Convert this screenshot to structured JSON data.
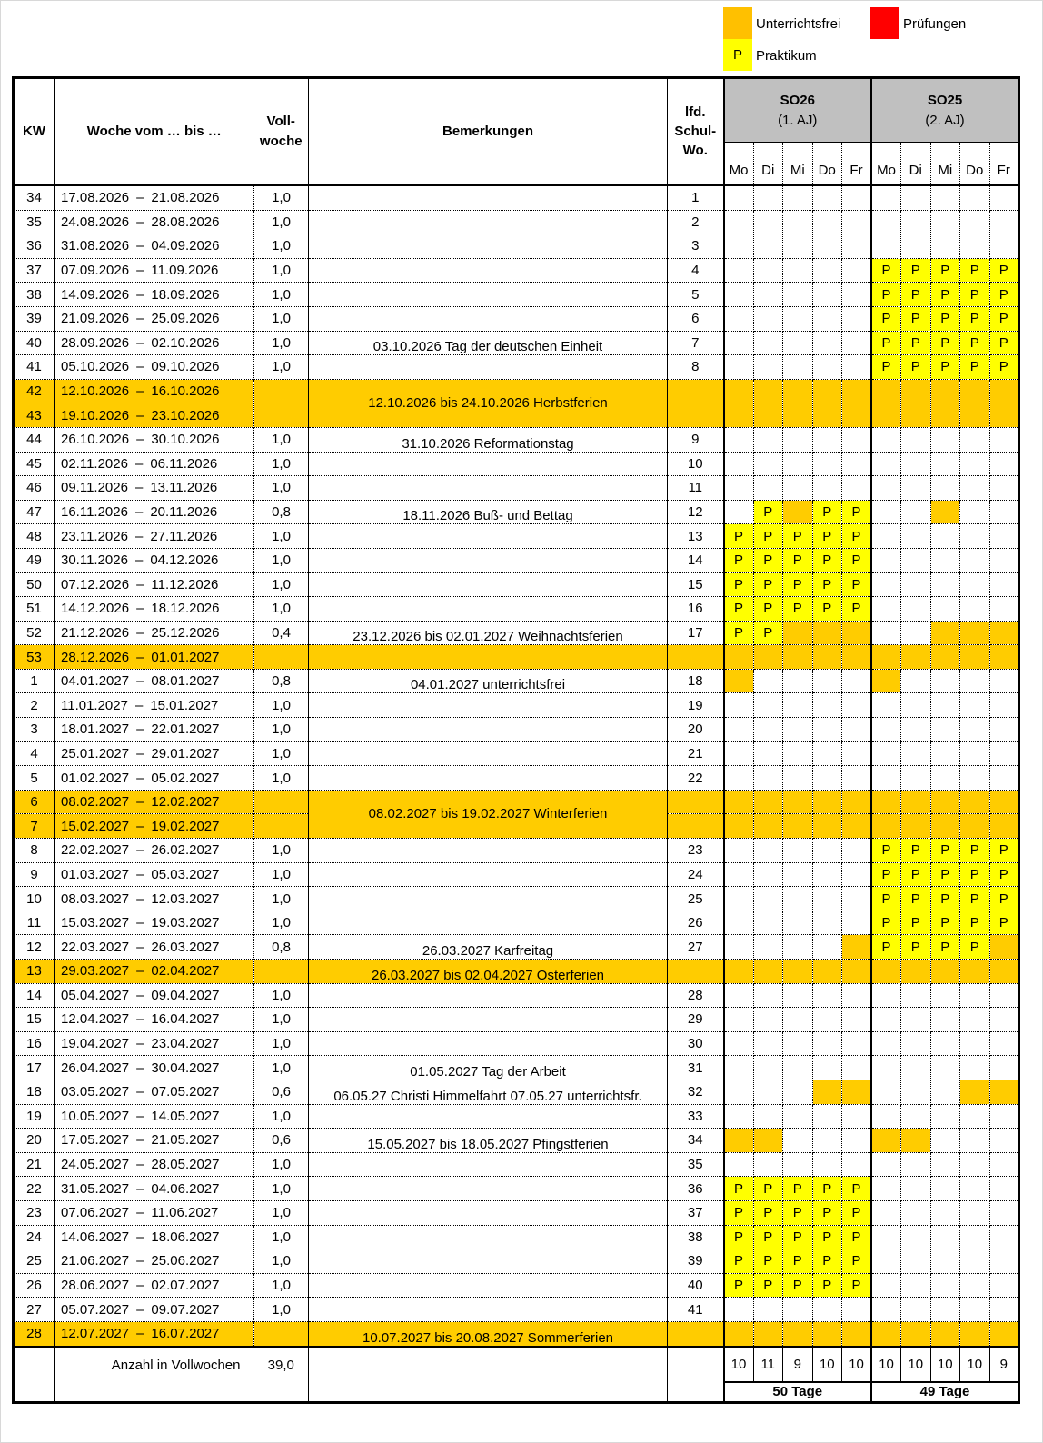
{
  "legend": {
    "unterrichtsfrei": "Unterrichtsfrei",
    "pruefungen": "Prüfungen",
    "praktikum": "Praktikum",
    "praktikum_mark": "P"
  },
  "colors": {
    "unterrichtsfrei": "#ffcc00",
    "praktikum": "#ffff00",
    "pruefungen": "#ff0000",
    "header_group": "#c0c0c0"
  },
  "header": {
    "kw": "KW",
    "woche": "Woche vom … bis …",
    "voll": "Voll-\nwoche",
    "bemerkungen": "Bemerkungen",
    "lfd": "lfd.\nSchul-\nWo.",
    "groups": [
      {
        "name": "SO26",
        "sub": "(1. AJ)"
      },
      {
        "name": "SO25",
        "sub": "(2. AJ)"
      }
    ],
    "days": [
      "Mo",
      "Di",
      "Mi",
      "Do",
      "Fr"
    ]
  },
  "rows": [
    {
      "kw": "34",
      "from": "17.08.2026",
      "to": "21.08.2026",
      "voll": "1,0",
      "note": "",
      "nr": "1",
      "so26": "-----",
      "so25": "-----"
    },
    {
      "kw": "35",
      "from": "24.08.2026",
      "to": "28.08.2026",
      "voll": "1,0",
      "note": "",
      "nr": "2",
      "so26": "-----",
      "so25": "-----"
    },
    {
      "kw": "36",
      "from": "31.08.2026",
      "to": "04.09.2026",
      "voll": "1,0",
      "note": "",
      "nr": "3",
      "so26": "-----",
      "so25": "-----"
    },
    {
      "kw": "37",
      "from": "07.09.2026",
      "to": "11.09.2026",
      "voll": "1,0",
      "note": "",
      "nr": "4",
      "so26": "-----",
      "so25": "PPPPP"
    },
    {
      "kw": "38",
      "from": "14.09.2026",
      "to": "18.09.2026",
      "voll": "1,0",
      "note": "",
      "nr": "5",
      "so26": "-----",
      "so25": "PPPPP"
    },
    {
      "kw": "39",
      "from": "21.09.2026",
      "to": "25.09.2026",
      "voll": "1,0",
      "note": "",
      "nr": "6",
      "so26": "-----",
      "so25": "PPPPP"
    },
    {
      "kw": "40",
      "from": "28.09.2026",
      "to": "02.10.2026",
      "voll": "1,0",
      "note": "03.10.2026 Tag der deutschen Einheit",
      "nr": "7",
      "so26": "-----",
      "so25": "PPPPP"
    },
    {
      "kw": "41",
      "from": "05.10.2026",
      "to": "09.10.2026",
      "voll": "1,0",
      "note": "",
      "nr": "8",
      "so26": "-----",
      "so25": "PPPPP"
    },
    {
      "kw": "42",
      "from": "12.10.2026",
      "to": "16.10.2026",
      "voll": "",
      "note": "12.10.2026 bis 24.10.2026 Herbstferien",
      "merged_with_next": true,
      "nr": "",
      "holiday": true,
      "so26": "UUUUU",
      "so25": "UUUUU"
    },
    {
      "kw": "43",
      "from": "19.10.2026",
      "to": "23.10.2026",
      "voll": "",
      "note": "",
      "nr": "",
      "holiday": true,
      "so26": "UUUUU",
      "so25": "UUUUU"
    },
    {
      "kw": "44",
      "from": "26.10.2026",
      "to": "30.10.2026",
      "voll": "1,0",
      "note": "31.10.2026 Reformationstag",
      "nr": "9",
      "so26": "-----",
      "so25": "-----"
    },
    {
      "kw": "45",
      "from": "02.11.2026",
      "to": "06.11.2026",
      "voll": "1,0",
      "note": "",
      "nr": "10",
      "so26": "-----",
      "so25": "-----"
    },
    {
      "kw": "46",
      "from": "09.11.2026",
      "to": "13.11.2026",
      "voll": "1,0",
      "note": "",
      "nr": "11",
      "so26": "-----",
      "so25": "-----"
    },
    {
      "kw": "47",
      "from": "16.11.2026",
      "to": "20.11.2026",
      "voll": "0,8",
      "note": "18.11.2026 Buß- und Bettag",
      "nr": "12",
      "so26": "-PUPP",
      "so25": "--U--"
    },
    {
      "kw": "48",
      "from": "23.11.2026",
      "to": "27.11.2026",
      "voll": "1,0",
      "note": "",
      "nr": "13",
      "so26": "PPPPP",
      "so25": "-----"
    },
    {
      "kw": "49",
      "from": "30.11.2026",
      "to": "04.12.2026",
      "voll": "1,0",
      "note": "",
      "nr": "14",
      "so26": "PPPPP",
      "so25": "-----"
    },
    {
      "kw": "50",
      "from": "07.12.2026",
      "to": "11.12.2026",
      "voll": "1,0",
      "note": "",
      "nr": "15",
      "so26": "PPPPP",
      "so25": "-----"
    },
    {
      "kw": "51",
      "from": "14.12.2026",
      "to": "18.12.2026",
      "voll": "1,0",
      "note": "",
      "nr": "16",
      "so26": "PPPPP",
      "so25": "-----"
    },
    {
      "kw": "52",
      "from": "21.12.2026",
      "to": "25.12.2026",
      "voll": "0,4",
      "note": "23.12.2026 bis 02.01.2027 Weihnachtsferien",
      "nr": "17",
      "so26": "PPUUU",
      "so25": "--UUU"
    },
    {
      "kw": "53",
      "from": "28.12.2026",
      "to": "01.01.2027",
      "voll": "",
      "note": "",
      "nr": "",
      "holiday": true,
      "so26": "UUUUU",
      "so25": "UUUUU"
    },
    {
      "kw": "1",
      "from": "04.01.2027",
      "to": "08.01.2027",
      "voll": "0,8",
      "note": "04.01.2027 unterrichtsfrei",
      "nr": "18",
      "so26": "U----",
      "so25": "U----"
    },
    {
      "kw": "2",
      "from": "11.01.2027",
      "to": "15.01.2027",
      "voll": "1,0",
      "note": "",
      "nr": "19",
      "so26": "-----",
      "so25": "-----"
    },
    {
      "kw": "3",
      "from": "18.01.2027",
      "to": "22.01.2027",
      "voll": "1,0",
      "note": "",
      "nr": "20",
      "so26": "-----",
      "so25": "-----"
    },
    {
      "kw": "4",
      "from": "25.01.2027",
      "to": "29.01.2027",
      "voll": "1,0",
      "note": "",
      "nr": "21",
      "so26": "-----",
      "so25": "-----"
    },
    {
      "kw": "5",
      "from": "01.02.2027",
      "to": "05.02.2027",
      "voll": "1,0",
      "note": "",
      "nr": "22",
      "so26": "-----",
      "so25": "-----"
    },
    {
      "kw": "6",
      "from": "08.02.2027",
      "to": "12.02.2027",
      "voll": "",
      "note": "08.02.2027 bis 19.02.2027 Winterferien",
      "merged_with_next": true,
      "nr": "",
      "holiday": true,
      "so26": "UUUUU",
      "so25": "UUUUU"
    },
    {
      "kw": "7",
      "from": "15.02.2027",
      "to": "19.02.2027",
      "voll": "",
      "note": "",
      "nr": "",
      "holiday": true,
      "so26": "UUUUU",
      "so25": "UUUUU"
    },
    {
      "kw": "8",
      "from": "22.02.2027",
      "to": "26.02.2027",
      "voll": "1,0",
      "note": "",
      "nr": "23",
      "so26": "-----",
      "so25": "PPPPP"
    },
    {
      "kw": "9",
      "from": "01.03.2027",
      "to": "05.03.2027",
      "voll": "1,0",
      "note": "",
      "nr": "24",
      "so26": "-----",
      "so25": "PPPPP"
    },
    {
      "kw": "10",
      "from": "08.03.2027",
      "to": "12.03.2027",
      "voll": "1,0",
      "note": "",
      "nr": "25",
      "so26": "-----",
      "so25": "PPPPP"
    },
    {
      "kw": "11",
      "from": "15.03.2027",
      "to": "19.03.2027",
      "voll": "1,0",
      "note": "",
      "nr": "26",
      "so26": "-----",
      "so25": "PPPPP"
    },
    {
      "kw": "12",
      "from": "22.03.2027",
      "to": "26.03.2027",
      "voll": "0,8",
      "note": "26.03.2027 Karfreitag",
      "nr": "27",
      "so26": "----U",
      "so25": "PPPPU"
    },
    {
      "kw": "13",
      "from": "29.03.2027",
      "to": "02.04.2027",
      "voll": "",
      "note": "26.03.2027 bis 02.04.2027 Osterferien",
      "nr": "",
      "holiday": true,
      "so26": "UUUUU",
      "so25": "UUUUU"
    },
    {
      "kw": "14",
      "from": "05.04.2027",
      "to": "09.04.2027",
      "voll": "1,0",
      "note": "",
      "nr": "28",
      "so26": "-----",
      "so25": "-----"
    },
    {
      "kw": "15",
      "from": "12.04.2027",
      "to": "16.04.2027",
      "voll": "1,0",
      "note": "",
      "nr": "29",
      "so26": "-----",
      "so25": "-----"
    },
    {
      "kw": "16",
      "from": "19.04.2027",
      "to": "23.04.2027",
      "voll": "1,0",
      "note": "",
      "nr": "30",
      "so26": "-----",
      "so25": "-----"
    },
    {
      "kw": "17",
      "from": "26.04.2027",
      "to": "30.04.2027",
      "voll": "1,0",
      "note": "01.05.2027 Tag der Arbeit",
      "nr": "31",
      "so26": "-----",
      "so25": "-----"
    },
    {
      "kw": "18",
      "from": "03.05.2027",
      "to": "07.05.2027",
      "voll": "0,6",
      "note": "06.05.27 Christi Himmelfahrt 07.05.27 unterrichtsfr.",
      "nr": "32",
      "so26": "---UU",
      "so25": "---UU"
    },
    {
      "kw": "19",
      "from": "10.05.2027",
      "to": "14.05.2027",
      "voll": "1,0",
      "note": "",
      "nr": "33",
      "so26": "-----",
      "so25": "-----"
    },
    {
      "kw": "20",
      "from": "17.05.2027",
      "to": "21.05.2027",
      "voll": "0,6",
      "note": "15.05.2027 bis 18.05.2027 Pfingstferien",
      "nr": "34",
      "so26": "UU---",
      "so25": "UU---"
    },
    {
      "kw": "21",
      "from": "24.05.2027",
      "to": "28.05.2027",
      "voll": "1,0",
      "note": "",
      "nr": "35",
      "so26": "-----",
      "so25": "-----"
    },
    {
      "kw": "22",
      "from": "31.05.2027",
      "to": "04.06.2027",
      "voll": "1,0",
      "note": "",
      "nr": "36",
      "so26": "PPPPP",
      "so25": "-----"
    },
    {
      "kw": "23",
      "from": "07.06.2027",
      "to": "11.06.2027",
      "voll": "1,0",
      "note": "",
      "nr": "37",
      "so26": "PPPPP",
      "so25": "-----"
    },
    {
      "kw": "24",
      "from": "14.06.2027",
      "to": "18.06.2027",
      "voll": "1,0",
      "note": "",
      "nr": "38",
      "so26": "PPPPP",
      "so25": "-----"
    },
    {
      "kw": "25",
      "from": "21.06.2027",
      "to": "25.06.2027",
      "voll": "1,0",
      "note": "",
      "nr": "39",
      "so26": "PPPPP",
      "so25": "-----"
    },
    {
      "kw": "26",
      "from": "28.06.2027",
      "to": "02.07.2027",
      "voll": "1,0",
      "note": "",
      "nr": "40",
      "so26": "PPPPP",
      "so25": "-----"
    },
    {
      "kw": "27",
      "from": "05.07.2027",
      "to": "09.07.2027",
      "voll": "1,0",
      "note": "",
      "nr": "41",
      "so26": "-----",
      "so25": "-----"
    },
    {
      "kw": "28",
      "from": "12.07.2027",
      "to": "16.07.2027",
      "voll": "",
      "note": "10.07.2027 bis 20.08.2027 Sommerferien",
      "nr": "",
      "holiday": true,
      "so26": "UUUUU",
      "so25": "UUUUU"
    }
  ],
  "date_separator": "–",
  "footer": {
    "label": "Anzahl in Vollwochen",
    "total": "39,0",
    "so26_days": [
      "10",
      "11",
      "9",
      "10",
      "10"
    ],
    "so25_days": [
      "10",
      "10",
      "10",
      "10",
      "9"
    ],
    "so26_total": "50 Tage",
    "so25_total": "49 Tage"
  }
}
